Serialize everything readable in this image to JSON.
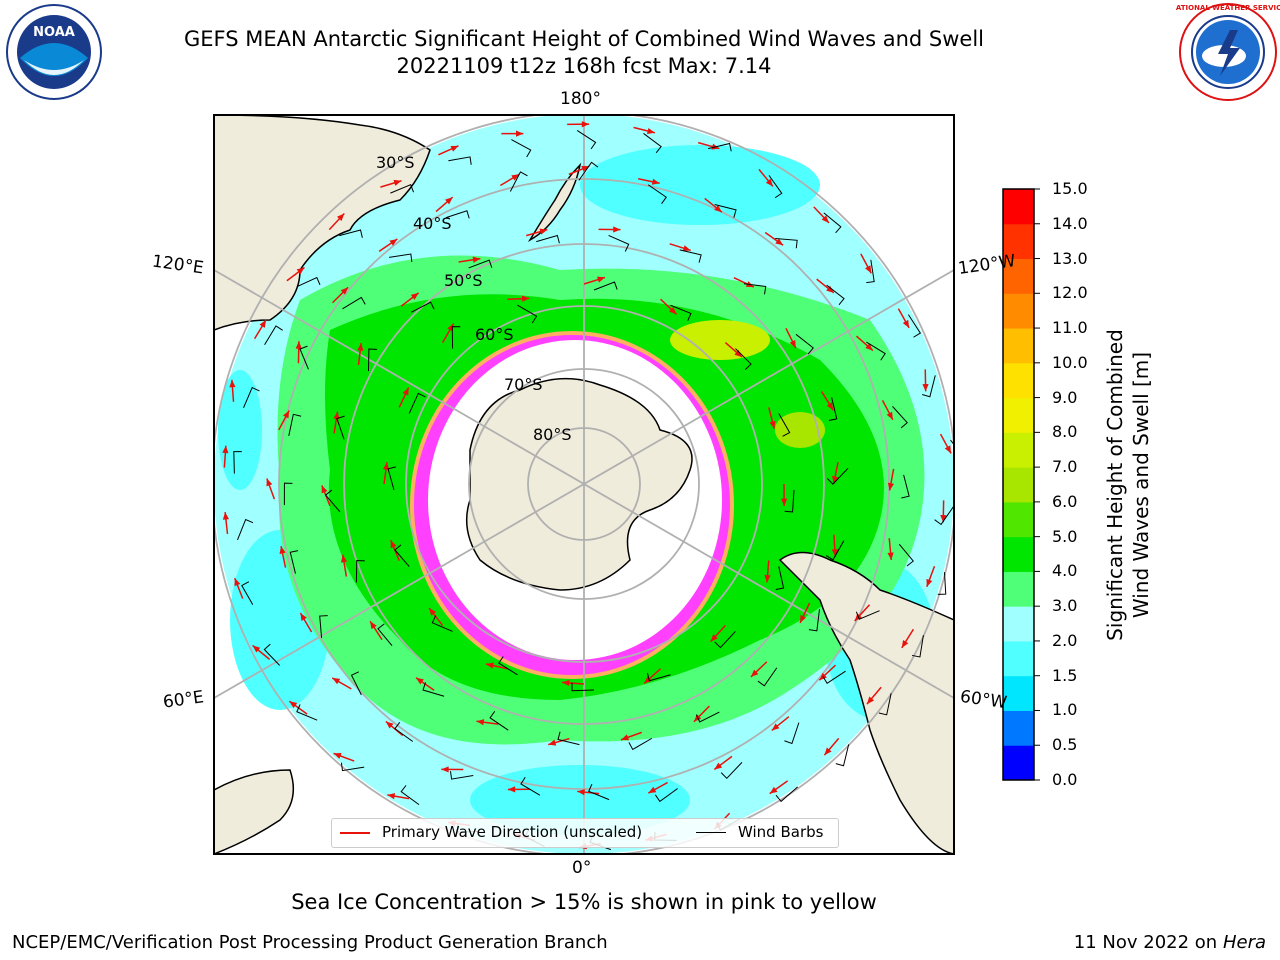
{
  "title_line1": "GEFS MEAN Antarctic Significant Height of Combined Wind Waves and Swell",
  "title_line2": "20221109 t12z 168h fcst   Max: 7.14",
  "logos": {
    "left": "NOAA",
    "right": "NATIONAL WEATHER SERVICE"
  },
  "longitude_labels": {
    "top": "180°",
    "bottom": "0°",
    "upper_left": "120°E",
    "upper_right": "120°W",
    "lower_left": "60°E",
    "lower_right": "60°W"
  },
  "latitude_labels": [
    "30°S",
    "40°S",
    "50°S",
    "60°S",
    "70°S",
    "80°S"
  ],
  "legend": {
    "wave_direction": "Primary Wave Direction (unscaled)",
    "wind_barbs": "Wind Barbs",
    "wave_color": "#e8120c",
    "barb_color": "#000000"
  },
  "colorbar": {
    "title_line1": "Significant Height of Combined",
    "title_line2": "Wind Waves and Swell [m]",
    "ticks": [
      "0.0",
      "0.5",
      "1.0",
      "1.5",
      "2.0",
      "3.0",
      "4.0",
      "5.0",
      "6.0",
      "7.0",
      "8.0",
      "9.0",
      "10.0",
      "11.0",
      "12.0",
      "13.0",
      "14.0",
      "15.0"
    ],
    "colors": [
      "#0000ff",
      "#0078ff",
      "#00e6ff",
      "#50ffff",
      "#a0ffff",
      "#50ff78",
      "#00e600",
      "#50e600",
      "#a8e600",
      "#c8f000",
      "#f0f000",
      "#ffe100",
      "#ffbe00",
      "#ff8c00",
      "#ff6400",
      "#ff3200",
      "#ff0000"
    ]
  },
  "map_colors": {
    "land": "#efecdc",
    "ice": "#ff40ff",
    "ice_edge": "#ffb060",
    "grid": "#b0b0b0"
  },
  "footer_caption": "Sea Ice Concentration > 15% is shown in pink to yellow",
  "footer_left": "NCEP/EMC/Verification Post Processing Product Generation Branch",
  "footer_date": "11 Nov 2022 on",
  "footer_host": "Hera"
}
